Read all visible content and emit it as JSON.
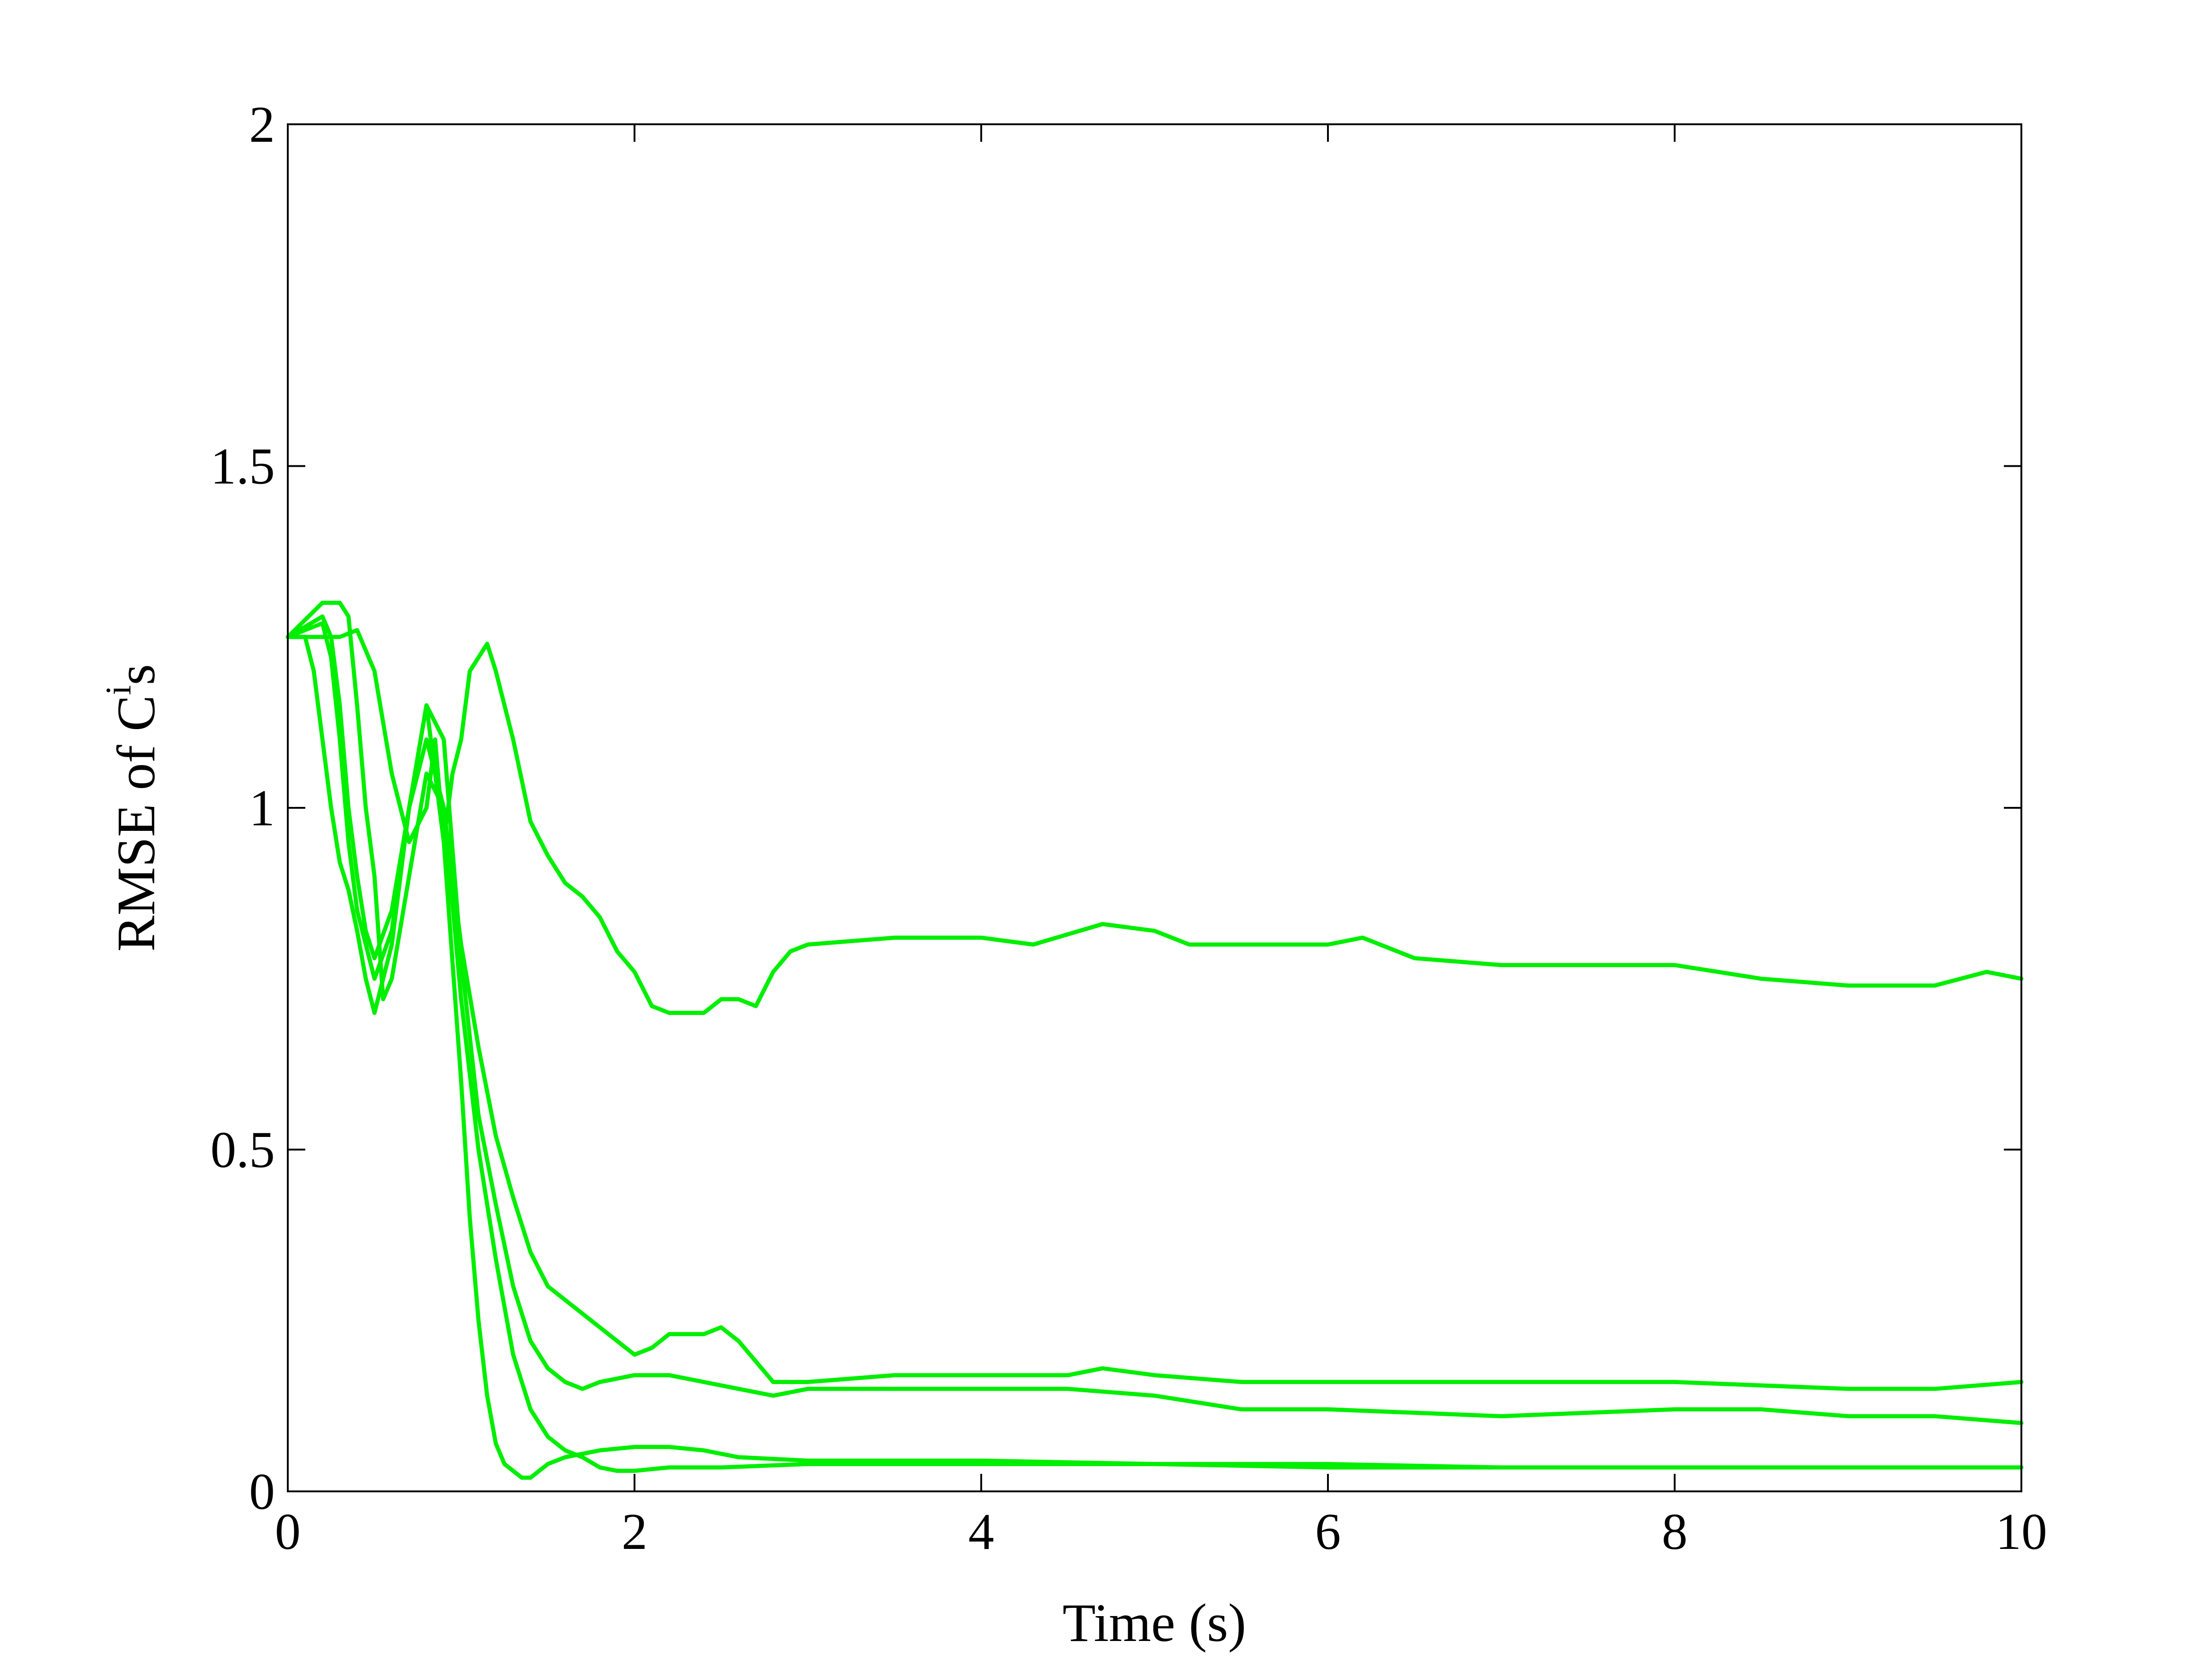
{
  "chart_data": {
    "type": "line",
    "title": "",
    "xlabel": "Time (s)",
    "ylabel": {
      "prefix": "RMSE of C",
      "superscript": "i",
      "suffix": "s"
    },
    "xlim": [
      0,
      10
    ],
    "ylim": [
      0,
      2
    ],
    "xticks": [
      0,
      2,
      4,
      6,
      8,
      10
    ],
    "yticks": [
      0,
      0.5,
      1,
      1.5,
      2
    ],
    "ytick_labels": [
      "0",
      "0.5",
      "1",
      "1.5",
      "2"
    ],
    "grid": false,
    "legend": "none",
    "line_color": "#00ee00",
    "series": [
      {
        "x": [
          0,
          0.2,
          0.3,
          0.4,
          0.5,
          0.6,
          0.7,
          0.8,
          0.85,
          0.9,
          0.95,
          1.0,
          1.05,
          1.1,
          1.15,
          1.2,
          1.3,
          1.4,
          1.5,
          1.6,
          1.7,
          1.8,
          1.9,
          2.0,
          2.1,
          2.2,
          2.3,
          2.4,
          2.5,
          2.6,
          2.7,
          2.8,
          2.9,
          3.0,
          3.5,
          4.0,
          4.3,
          4.7,
          5.0,
          5.2,
          5.5,
          6.0,
          6.2,
          6.5,
          7.0,
          8.0,
          8.5,
          9.0,
          9.5,
          9.8,
          10.0
        ],
        "y": [
          1.25,
          1.25,
          1.25,
          1.26,
          1.2,
          1.05,
          0.95,
          1.0,
          1.1,
          0.95,
          1.05,
          1.1,
          1.2,
          1.22,
          1.24,
          1.2,
          1.1,
          0.98,
          0.93,
          0.89,
          0.87,
          0.84,
          0.79,
          0.76,
          0.71,
          0.7,
          0.7,
          0.7,
          0.72,
          0.72,
          0.71,
          0.76,
          0.79,
          0.8,
          0.81,
          0.81,
          0.8,
          0.83,
          0.82,
          0.8,
          0.8,
          0.8,
          0.81,
          0.78,
          0.77,
          0.77,
          0.75,
          0.74,
          0.74,
          0.76,
          0.75
        ]
      },
      {
        "x": [
          0,
          0.2,
          0.3,
          0.35,
          0.4,
          0.45,
          0.5,
          0.55,
          0.6,
          0.7,
          0.8,
          0.9,
          1.0,
          1.1,
          1.2,
          1.3,
          1.4,
          1.5,
          1.7,
          1.9,
          2.0,
          2.1,
          2.2,
          2.3,
          2.4,
          2.5,
          2.6,
          2.7,
          2.8,
          3.0,
          3.5,
          4.0,
          4.5,
          4.7,
          5.0,
          5.5,
          6.0,
          7.0,
          8.0,
          9.0,
          9.5,
          10.0
        ],
        "y": [
          1.25,
          1.3,
          1.3,
          1.28,
          1.15,
          1.0,
          0.9,
          0.72,
          0.75,
          0.9,
          1.05,
          1.0,
          0.8,
          0.65,
          0.52,
          0.43,
          0.35,
          0.3,
          0.26,
          0.22,
          0.2,
          0.21,
          0.23,
          0.23,
          0.23,
          0.24,
          0.22,
          0.19,
          0.16,
          0.16,
          0.17,
          0.17,
          0.17,
          0.18,
          0.17,
          0.16,
          0.16,
          0.16,
          0.16,
          0.15,
          0.15,
          0.16
        ]
      },
      {
        "x": [
          0,
          0.2,
          0.25,
          0.3,
          0.35,
          0.4,
          0.45,
          0.5,
          0.6,
          0.7,
          0.8,
          0.9,
          1.0,
          1.1,
          1.2,
          1.3,
          1.4,
          1.5,
          1.6,
          1.7,
          1.8,
          2.0,
          2.2,
          2.4,
          2.6,
          2.8,
          3.0,
          3.5,
          4.0,
          4.5,
          5.0,
          5.5,
          6.0,
          7.0,
          8.0,
          8.5,
          9.0,
          9.5,
          10.0
        ],
        "y": [
          1.25,
          1.28,
          1.25,
          1.15,
          1.0,
          0.9,
          0.82,
          0.78,
          0.85,
          1.0,
          1.15,
          1.1,
          0.78,
          0.55,
          0.42,
          0.3,
          0.22,
          0.18,
          0.16,
          0.15,
          0.16,
          0.17,
          0.17,
          0.16,
          0.15,
          0.14,
          0.15,
          0.15,
          0.15,
          0.15,
          0.14,
          0.12,
          0.12,
          0.11,
          0.12,
          0.12,
          0.11,
          0.11,
          0.1
        ]
      },
      {
        "x": [
          0,
          0.1,
          0.15,
          0.2,
          0.25,
          0.3,
          0.35,
          0.4,
          0.45,
          0.5,
          0.6,
          0.7,
          0.8,
          0.9,
          1.0,
          1.05,
          1.1,
          1.15,
          1.2,
          1.25,
          1.3,
          1.35,
          1.4,
          1.5,
          1.6,
          1.8,
          2.0,
          2.2,
          2.4,
          2.6,
          3.0,
          4.0,
          5.0,
          6.0,
          7.0,
          8.0,
          9.0,
          10.0
        ],
        "y": [
          1.25,
          1.25,
          1.2,
          1.1,
          1.0,
          0.92,
          0.88,
          0.82,
          0.75,
          0.7,
          0.8,
          1.0,
          1.15,
          0.95,
          0.6,
          0.4,
          0.25,
          0.14,
          0.07,
          0.04,
          0.03,
          0.02,
          0.02,
          0.04,
          0.05,
          0.06,
          0.065,
          0.065,
          0.06,
          0.05,
          0.045,
          0.045,
          0.04,
          0.04,
          0.035,
          0.035,
          0.035,
          0.035
        ]
      },
      {
        "x": [
          0,
          0.2,
          0.25,
          0.3,
          0.35,
          0.4,
          0.5,
          0.6,
          0.7,
          0.8,
          0.9,
          1.0,
          1.1,
          1.2,
          1.3,
          1.4,
          1.5,
          1.6,
          1.7,
          1.8,
          1.9,
          2.0,
          2.2,
          2.5,
          3.0,
          4.0,
          5.0,
          6.0,
          7.0,
          8.0,
          9.0,
          10.0
        ],
        "y": [
          1.25,
          1.27,
          1.22,
          1.1,
          0.95,
          0.85,
          0.75,
          0.82,
          1.0,
          1.1,
          1.0,
          0.72,
          0.5,
          0.34,
          0.2,
          0.12,
          0.08,
          0.06,
          0.05,
          0.035,
          0.03,
          0.03,
          0.035,
          0.035,
          0.04,
          0.04,
          0.04,
          0.035,
          0.035,
          0.035,
          0.035,
          0.035
        ]
      }
    ]
  }
}
